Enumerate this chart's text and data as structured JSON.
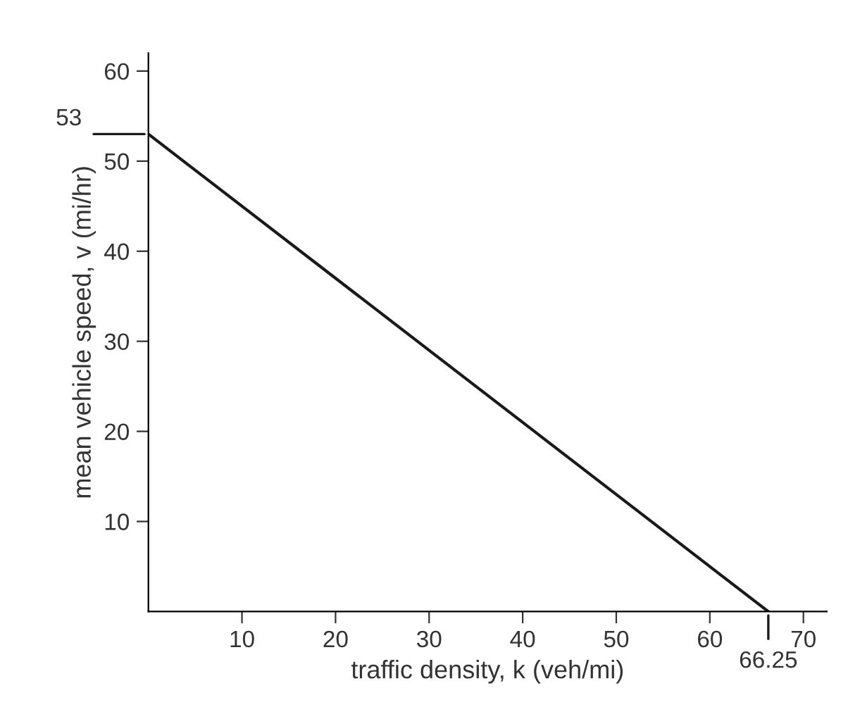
{
  "chart_data": {
    "type": "line",
    "xlabel": "traffic density, k (veh/mi)",
    "ylabel": "mean vehicle speed, v (mi/hr)",
    "series": [
      {
        "color": "#1a1a1a",
        "x": [
          0,
          66.25
        ],
        "values": [
          53,
          0
        ]
      }
    ],
    "xlim": [
      0,
      72.5
    ],
    "ylim": [
      0,
      62
    ],
    "xticks": [
      10,
      20,
      30,
      40,
      50,
      60,
      70
    ],
    "yticks": [
      10,
      20,
      30,
      40,
      50,
      60
    ],
    "annotations": [
      {
        "text": "53",
        "x": 0,
        "y": 53
      },
      {
        "text": "66.25",
        "x": 66.25,
        "y": 0
      }
    ],
    "grid": false,
    "legend": false,
    "marker": "none",
    "line_style": "solid"
  }
}
